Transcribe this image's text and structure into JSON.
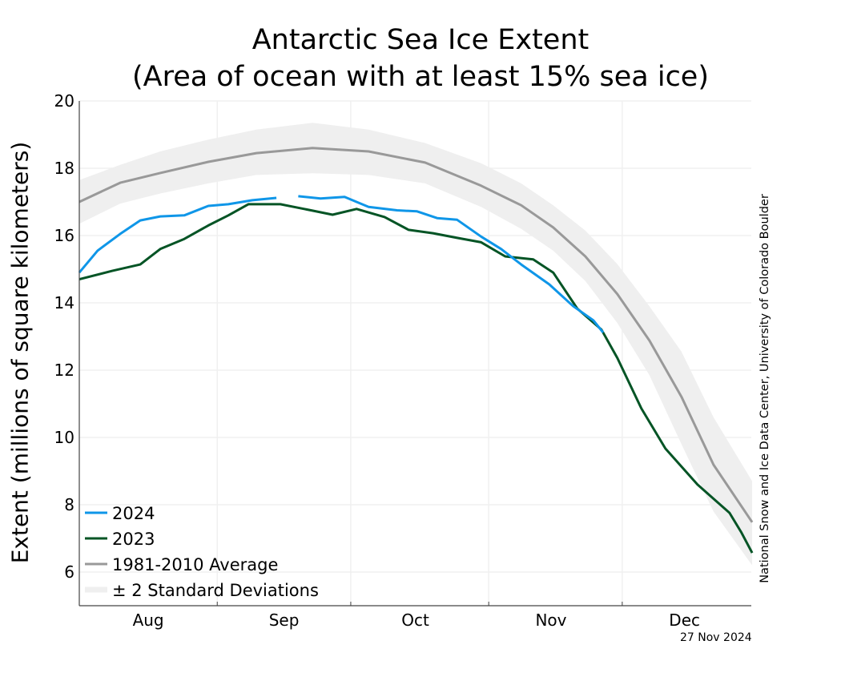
{
  "chart_data": {
    "type": "line",
    "title": "Antarctic Sea Ice Extent",
    "subtitle": "(Area of ocean with at least 15% sea ice)",
    "xlabel": "",
    "ylabel": "Extent (millions of square kilometers)",
    "x_unit": "days since Aug 1",
    "xlim": [
      0,
      151
    ],
    "ylim": [
      5,
      20
    ],
    "yticks": [
      6,
      8,
      10,
      12,
      14,
      16,
      18,
      20
    ],
    "xticks": [
      {
        "label": "Aug",
        "day": 15.5
      },
      {
        "label": "Sep",
        "day": 46
      },
      {
        "label": "Oct",
        "day": 75.5
      },
      {
        "label": "Nov",
        "day": 106
      },
      {
        "label": "Dec",
        "day": 136
      }
    ],
    "month_boundaries": [
      31,
      61,
      92,
      122
    ],
    "grid": true,
    "legend_position": "bottom-left",
    "series": [
      {
        "name": "2024",
        "color": "#0f96e8",
        "segments": [
          {
            "x": [
              0,
              4.1,
              9.2,
              13.7,
              18.2,
              23.6,
              29,
              33.5,
              38.9,
              44.3
            ],
            "y": [
              14.9,
              15.55,
              16.05,
              16.45,
              16.57,
              16.6,
              16.88,
              16.93,
              17.05,
              17.12
            ]
          },
          {
            "x": [
              49.2,
              54.2,
              59.6,
              65,
              71.4,
              75.9,
              80.4,
              84.9,
              90.3,
              94.8,
              99.3,
              105.6,
              111,
              115.5,
              117.7
            ],
            "y": [
              17.17,
              17.1,
              17.15,
              16.85,
              16.75,
              16.72,
              16.52,
              16.47,
              15.97,
              15.6,
              15.14,
              14.55,
              13.9,
              13.48,
              13.12
            ]
          }
        ]
      },
      {
        "name": "2023",
        "color": "#045425",
        "segments": [
          {
            "x": [
              0,
              7.4,
              13.7,
              18.2,
              23.6,
              29,
              33.5,
              37.985,
              45.2,
              52.4,
              56.9,
              62.3,
              68.6,
              74,
              79.5,
              84.9,
              90.3,
              95.7,
              102,
              106.5,
              111.9,
              117.3,
              120.9,
              126.3,
              131.7,
              138.9,
              146.1,
              148.8,
              151.2
            ],
            "y": [
              14.7,
              14.95,
              15.14,
              15.6,
              15.9,
              16.3,
              16.6,
              16.93,
              16.93,
              16.74,
              16.62,
              16.79,
              16.55,
              16.17,
              16.07,
              15.93,
              15.8,
              15.38,
              15.29,
              14.9,
              13.83,
              13.21,
              12.36,
              10.86,
              9.67,
              8.6,
              7.76,
              7.17,
              6.57
            ]
          }
        ]
      },
      {
        "name": "1981-2010 Average",
        "color": "#999999",
        "segments": [
          {
            "x": [
              0,
              9.2,
              18.2,
              29,
              39.8,
              52.4,
              65,
              77.7,
              90.3,
              99.3,
              106.5,
              113.7,
              120.9,
              128.1,
              135.3,
              142.5,
              151.2
            ],
            "y": [
              17.0,
              17.57,
              17.86,
              18.19,
              18.45,
              18.6,
              18.5,
              18.17,
              17.48,
              16.9,
              16.24,
              15.38,
              14.26,
              12.88,
              11.21,
              9.19,
              7.48
            ]
          }
        ]
      }
    ],
    "band": {
      "name": "± 2 Standard Deviations",
      "color": "#efefef",
      "x": [
        0,
        9.2,
        18.2,
        29,
        39.8,
        52.4,
        65,
        77.7,
        90.3,
        99.3,
        106.5,
        113.7,
        120.9,
        128.1,
        135.3,
        142.5,
        151.2
      ],
      "upper": [
        17.65,
        18.1,
        18.5,
        18.85,
        19.15,
        19.35,
        19.15,
        18.75,
        18.15,
        17.55,
        16.9,
        16.15,
        15.15,
        13.9,
        12.55,
        10.6,
        8.7
      ],
      "lower": [
        16.35,
        16.95,
        17.25,
        17.55,
        17.8,
        17.85,
        17.8,
        17.55,
        16.85,
        16.2,
        15.55,
        14.65,
        13.4,
        11.85,
        9.8,
        7.8,
        6.2
      ]
    }
  },
  "legend": [
    {
      "label": "2024",
      "color": "#0f96e8"
    },
    {
      "label": "2023",
      "color": "#045425"
    },
    {
      "label": "1981-2010 Average",
      "color": "#999999"
    },
    {
      "label": "± 2 Standard Deviations",
      "color": "#efefef"
    }
  ],
  "credit": "National Snow and Ice Data Center, University of Colorado Boulder",
  "date_stamp": "27 Nov 2024"
}
